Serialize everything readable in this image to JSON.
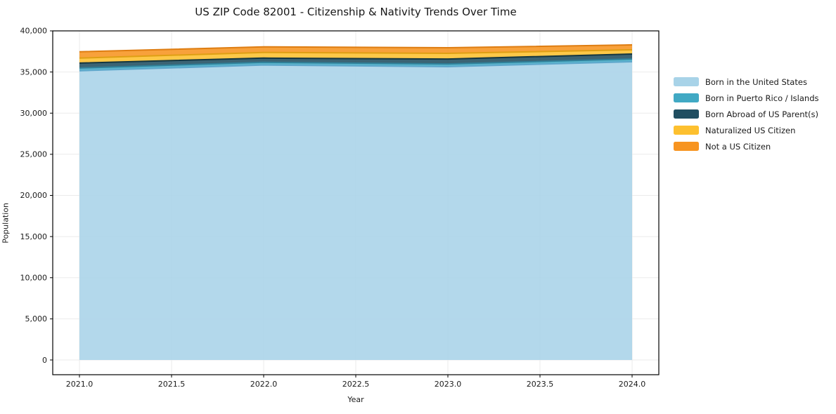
{
  "page": {
    "background": "#ffffff"
  },
  "chart_data": {
    "type": "area",
    "stacked": true,
    "title": "US ZIP Code 82001 - Citizenship & Nativity Trends Over Time",
    "xlabel": "Year",
    "ylabel": "Population",
    "x": [
      2021,
      2022,
      2023,
      2024
    ],
    "series": [
      {
        "name": "Born in the United States",
        "values": [
          35150,
          35850,
          35650,
          36250
        ],
        "color": "#a8d3e8",
        "edge_color": "#5fa8cc"
      },
      {
        "name": "Born in Puerto Rico / Islands",
        "values": [
          340,
          330,
          330,
          340
        ],
        "color": "#41a9c4",
        "edge_color": "#2f8099"
      },
      {
        "name": "Born Abroad of US Parent(s)",
        "values": [
          600,
          510,
          600,
          600
        ],
        "color": "#204e61",
        "edge_color": "#15363f"
      },
      {
        "name": "Naturalized US Citizen",
        "values": [
          600,
          690,
          690,
          510
        ],
        "color": "#fdc02f",
        "edge_color": "#df9f14"
      },
      {
        "name": "Not a US Citizen",
        "values": [
          770,
          680,
          680,
          600
        ],
        "color": "#f79420",
        "edge_color": "#de7d12"
      }
    ],
    "totals": [
      37460,
      38060,
      37950,
      38300
    ],
    "xlim": [
      2020.855,
      2024.145
    ],
    "ylim": [
      -1790,
      40000
    ],
    "x_tick_values": [
      2021.0,
      2021.5,
      2022.0,
      2022.5,
      2023.0,
      2023.5,
      2024.0
    ],
    "x_tick_labels": [
      "2021.0",
      "2021.5",
      "2022.0",
      "2022.5",
      "2023.0",
      "2023.5",
      "2024.0"
    ],
    "y_tick_values": [
      0,
      5000,
      10000,
      15000,
      20000,
      25000,
      30000,
      35000,
      40000
    ],
    "y_tick_labels": [
      "0",
      "5,000",
      "10,000",
      "15,000",
      "20,000",
      "25,000",
      "30,000",
      "35,000",
      "40,000"
    ],
    "grid": true,
    "grid_color": "#ebebeb",
    "spine_color": "#000000",
    "legend_position": "right"
  }
}
